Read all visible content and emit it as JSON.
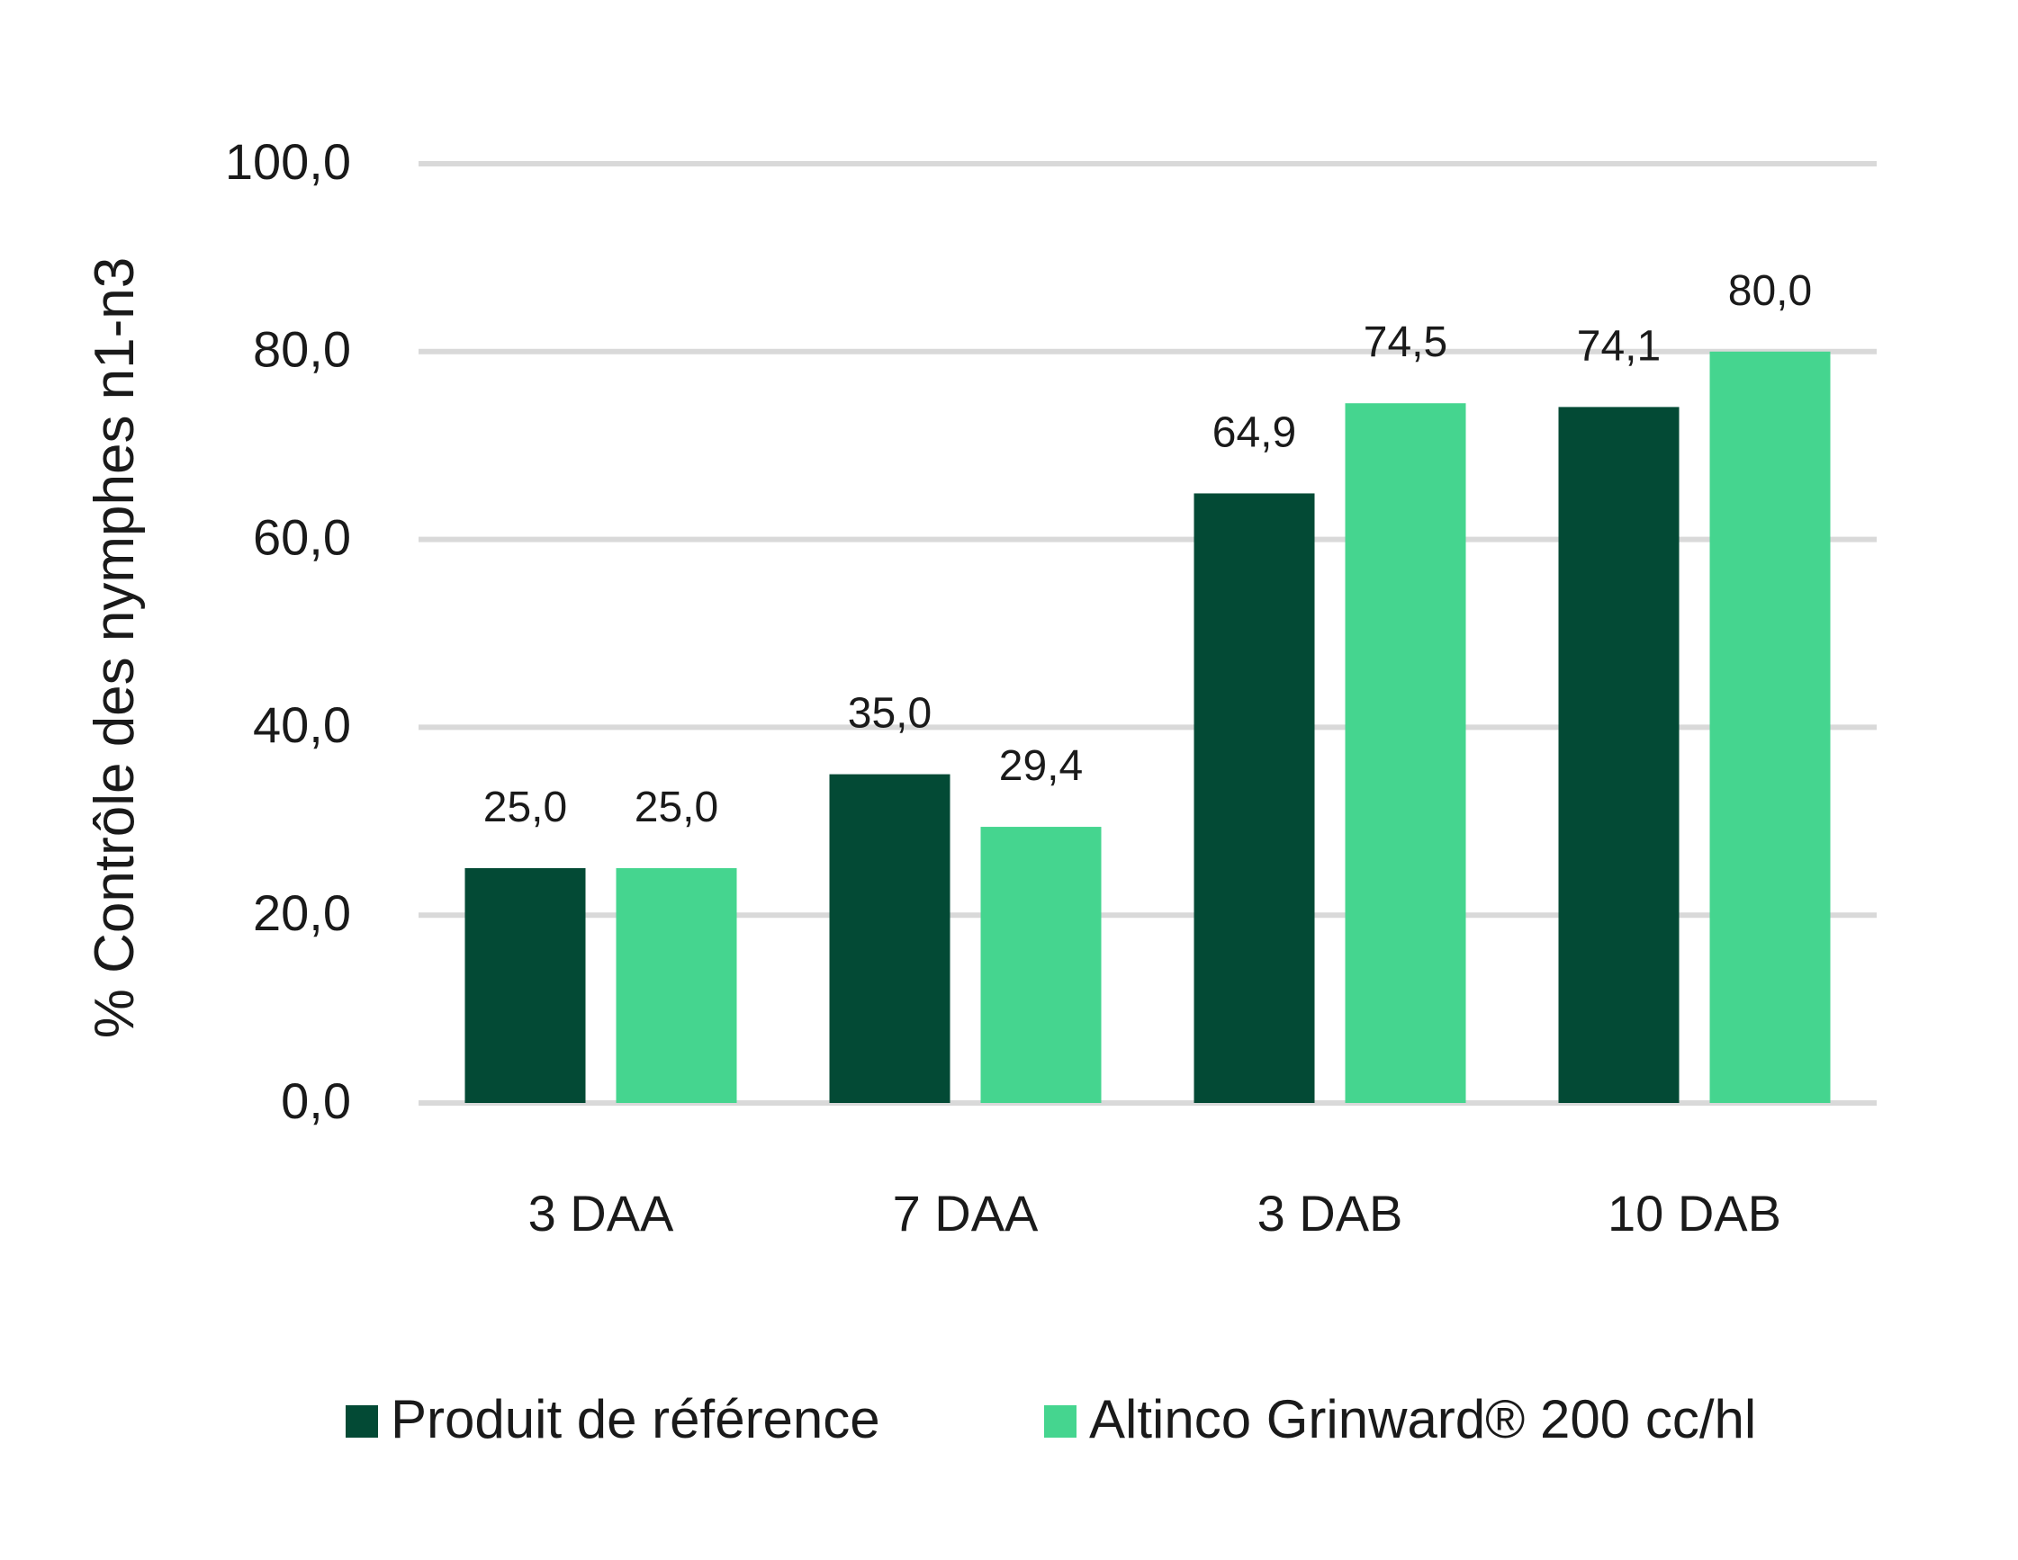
{
  "chart_data": {
    "type": "bar",
    "ylabel": "% Contrôle des nymphes n1-n3",
    "xlabel": "",
    "ylim": [
      0,
      100
    ],
    "yticks": [
      "0,0",
      "20,0",
      "40,0",
      "60,0",
      "80,0",
      "100,0"
    ],
    "ytick_values": [
      0,
      20,
      40,
      60,
      80,
      100
    ],
    "grid": true,
    "legend_position": "bottom",
    "categories": [
      "3 DAA",
      "7 DAA",
      "3 DAB",
      "10 DAB"
    ],
    "series": [
      {
        "name": "Produit de référence",
        "color": "#034a35",
        "values": [
          25.0,
          35.0,
          64.9,
          74.1
        ],
        "labels": [
          "25,0",
          "35,0",
          "64,9",
          "74,1"
        ]
      },
      {
        "name": "Altinco Grinward® 200 cc/hl",
        "color": "#45d58f",
        "values": [
          25.0,
          29.4,
          74.5,
          80.0
        ],
        "labels": [
          "25,0",
          "29,4",
          "74,5",
          "80,0"
        ]
      }
    ],
    "grid_color": "#d9d9d9"
  }
}
